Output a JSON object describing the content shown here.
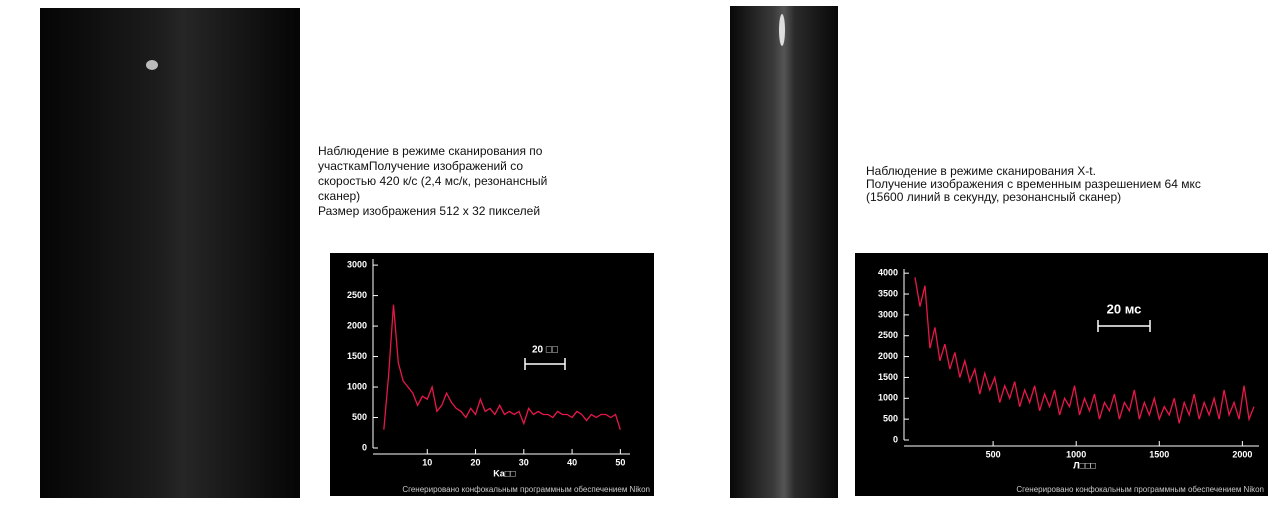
{
  "chart_data": [
    {
      "type": "line",
      "caption": [
        "Наблюдение в режиме сканирования по",
        "участкамПолучение изображений со",
        "скоростью 420 к/с (2,4 мс/к, резонансный",
        "сканер)",
        "Размер изображения 512 x 32 пикселей"
      ],
      "xlabel": "Ka□□",
      "annotation": "20 □□",
      "credit": "Сгенерировано конфокальным программным обеспечением Nikon",
      "xlim": [
        0,
        52
      ],
      "ylim": [
        0,
        3100
      ],
      "xticks": [
        10,
        20,
        30,
        40,
        50
      ],
      "yticks": [
        0,
        500,
        1000,
        1500,
        2000,
        2500,
        3000
      ],
      "series": [
        {
          "color": "#e8174a",
          "x": [
            1,
            2,
            3,
            4,
            5,
            6,
            7,
            8,
            9,
            10,
            11,
            12,
            13,
            14,
            15,
            16,
            17,
            18,
            19,
            20,
            21,
            22,
            23,
            24,
            25,
            26,
            27,
            28,
            29,
            30,
            31,
            32,
            33,
            34,
            35,
            36,
            37,
            38,
            39,
            40,
            41,
            42,
            43,
            44,
            45,
            46,
            47,
            48,
            49,
            50
          ],
          "values": [
            300,
            1200,
            2350,
            1400,
            1100,
            1000,
            900,
            700,
            850,
            800,
            1000,
            600,
            700,
            900,
            750,
            650,
            600,
            500,
            650,
            550,
            800,
            600,
            650,
            550,
            700,
            550,
            600,
            550,
            600,
            400,
            650,
            550,
            600,
            550,
            550,
            500,
            600,
            550,
            550,
            500,
            600,
            550,
            450,
            550,
            500,
            550,
            550,
            500,
            550,
            300
          ]
        }
      ]
    },
    {
      "type": "line",
      "caption": [
        "Наблюдение в режиме сканирования X-t.",
        "Получение изображения с временным разрешением 64 мкс",
        "(15600 линий в секунду, резонансный сканер)"
      ],
      "xlabel": "Л□□□",
      "annotation": "20 мс",
      "credit": "Сгенерировано конфокальным программным обеспечением Nikon",
      "xlim": [
        0,
        2100
      ],
      "ylim": [
        0,
        4100
      ],
      "xticks": [
        500,
        1000,
        1500,
        2000
      ],
      "yticks": [
        0,
        500,
        1000,
        1500,
        2000,
        2500,
        3000,
        3500,
        4000
      ],
      "series": [
        {
          "color": "#e8174a",
          "x": [
            30,
            60,
            90,
            120,
            150,
            180,
            210,
            240,
            270,
            300,
            330,
            360,
            390,
            420,
            450,
            480,
            510,
            540,
            570,
            600,
            630,
            660,
            690,
            720,
            750,
            780,
            810,
            840,
            870,
            900,
            930,
            960,
            990,
            1020,
            1050,
            1080,
            1110,
            1140,
            1170,
            1200,
            1230,
            1260,
            1290,
            1320,
            1350,
            1380,
            1410,
            1440,
            1470,
            1500,
            1530,
            1560,
            1590,
            1620,
            1650,
            1680,
            1710,
            1740,
            1770,
            1800,
            1830,
            1860,
            1890,
            1920,
            1950,
            1980,
            2010,
            2040,
            2070
          ],
          "values": [
            3900,
            3200,
            3700,
            2200,
            2700,
            1900,
            2300,
            1700,
            2100,
            1500,
            1900,
            1400,
            1700,
            1100,
            1600,
            1200,
            1500,
            900,
            1300,
            1000,
            1400,
            800,
            1200,
            900,
            1300,
            700,
            1100,
            800,
            1200,
            600,
            1000,
            800,
            1300,
            600,
            1000,
            700,
            1100,
            500,
            900,
            700,
            1100,
            500,
            900,
            700,
            1200,
            500,
            900,
            600,
            1000,
            500,
            800,
            600,
            1000,
            400,
            900,
            600,
            1100,
            500,
            900,
            600,
            1000,
            500,
            1200,
            600,
            900,
            500,
            1300,
            500,
            800
          ]
        }
      ]
    }
  ]
}
